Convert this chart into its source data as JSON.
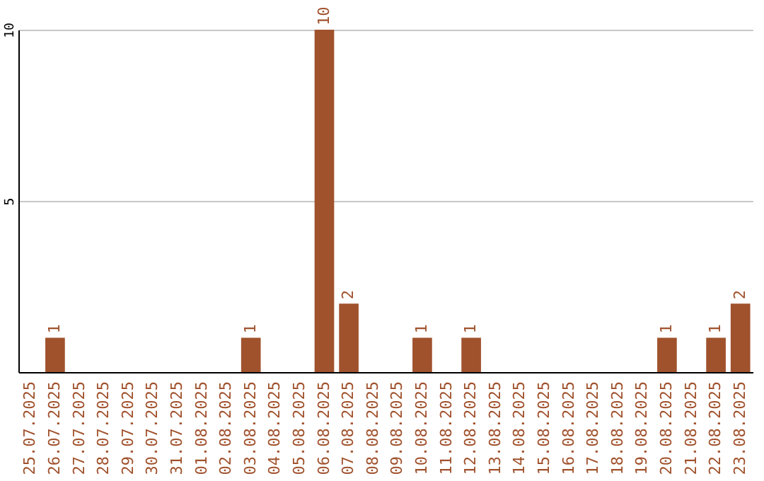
{
  "chart_data": {
    "type": "bar",
    "categories": [
      "25.07.2025",
      "26.07.2025",
      "27.07.2025",
      "28.07.2025",
      "29.07.2025",
      "30.07.2025",
      "31.07.2025",
      "01.08.2025",
      "02.08.2025",
      "03.08.2025",
      "04.08.2025",
      "05.08.2025",
      "06.08.2025",
      "07.08.2025",
      "08.08.2025",
      "09.08.2025",
      "10.08.2025",
      "11.08.2025",
      "12.08.2025",
      "13.08.2025",
      "14.08.2025",
      "15.08.2025",
      "16.08.2025",
      "17.08.2025",
      "18.08.2025",
      "19.08.2025",
      "20.08.2025",
      "21.08.2025",
      "22.08.2025",
      "23.08.2025"
    ],
    "values": [
      0,
      1,
      0,
      0,
      0,
      0,
      0,
      0,
      0,
      1,
      0,
      0,
      10,
      2,
      0,
      0,
      1,
      0,
      1,
      0,
      0,
      0,
      0,
      0,
      0,
      0,
      1,
      0,
      1,
      2
    ],
    "value_labels": [
      null,
      "1",
      null,
      null,
      null,
      null,
      null,
      null,
      null,
      "1",
      null,
      null,
      "10",
      "2",
      null,
      null,
      "1",
      null,
      "1",
      null,
      null,
      null,
      null,
      null,
      null,
      null,
      "1",
      null,
      "1",
      "2"
    ],
    "color": "#a0522d",
    "ylim": [
      0,
      10
    ],
    "yticks": [
      5,
      10
    ],
    "grid": "y"
  }
}
